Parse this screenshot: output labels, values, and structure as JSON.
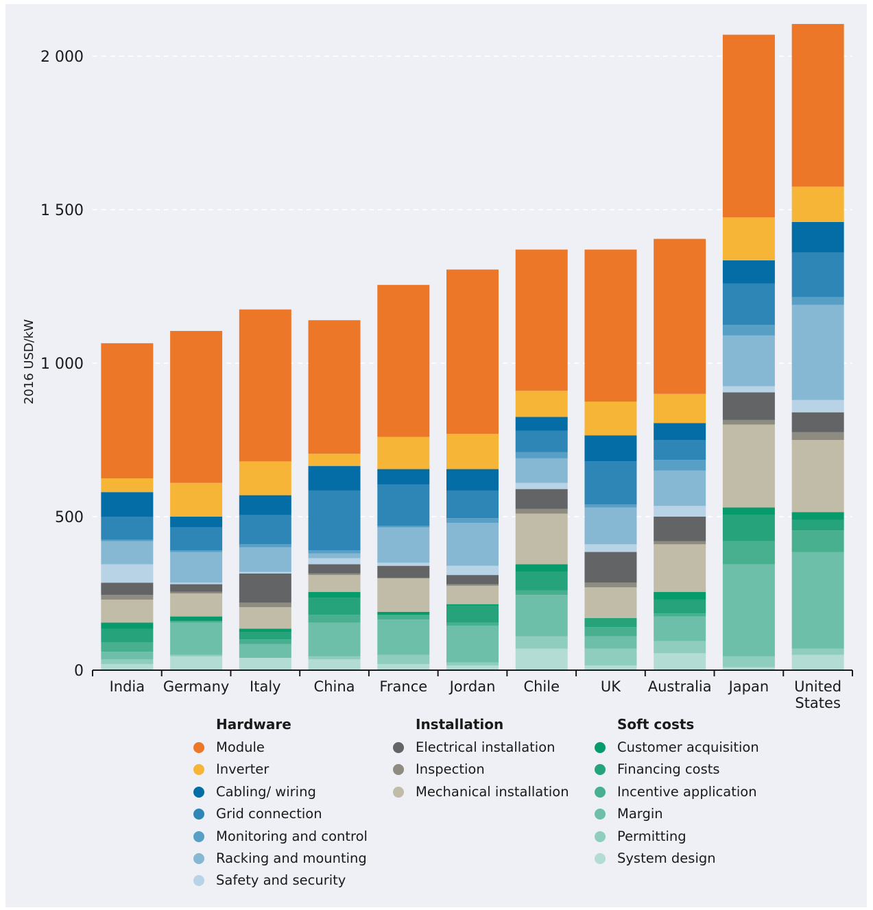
{
  "chart_data": {
    "type": "bar",
    "stacked": true,
    "ylabel": "2016 USD/kW",
    "xlabel": "",
    "ylim": [
      0,
      2100
    ],
    "yticks": [
      {
        "value": 0,
        "label": "0"
      },
      {
        "value": 500,
        "label": "500"
      },
      {
        "value": 1000,
        "label": "1 000"
      },
      {
        "value": 1500,
        "label": "1 500"
      },
      {
        "value": 2000,
        "label": "2 000"
      }
    ],
    "grid": true,
    "legend_position": "bottom",
    "categories": [
      "India",
      "Germany",
      "Italy",
      "China",
      "France",
      "Jordan",
      "Chile",
      "UK",
      "Australia",
      "Japan",
      "United States"
    ],
    "series": [
      {
        "name": "System design",
        "group": "Soft costs",
        "color": "#b3dcd5",
        "values": [
          20,
          45,
          40,
          35,
          20,
          15,
          70,
          15,
          55,
          10,
          50
        ]
      },
      {
        "name": "Permitting",
        "group": "Soft costs",
        "color": "#8fcdbf",
        "values": [
          15,
          5,
          0,
          10,
          30,
          10,
          40,
          55,
          40,
          35,
          20
        ]
      },
      {
        "name": "Margin",
        "group": "Soft costs",
        "color": "#6dbfa9",
        "values": [
          25,
          105,
          45,
          110,
          115,
          120,
          135,
          40,
          80,
          300,
          315
        ]
      },
      {
        "name": "Incentive application",
        "group": "Soft costs",
        "color": "#48b08f",
        "values": [
          30,
          5,
          15,
          25,
          15,
          10,
          15,
          30,
          10,
          75,
          70
        ]
      },
      {
        "name": "Financing costs",
        "group": "Soft costs",
        "color": "#27a37c",
        "values": [
          45,
          0,
          25,
          55,
          0,
          55,
          60,
          30,
          45,
          85,
          35
        ]
      },
      {
        "name": "Customer acquisition",
        "group": "Soft costs",
        "color": "#079a6b",
        "values": [
          20,
          15,
          10,
          20,
          10,
          5,
          25,
          0,
          25,
          25,
          25
        ]
      },
      {
        "name": "Mechanical installation",
        "group": "Installation",
        "color": "#c1bca8",
        "values": [
          75,
          75,
          70,
          55,
          110,
          60,
          165,
          100,
          155,
          270,
          235
        ]
      },
      {
        "name": "Inspection",
        "group": "Installation",
        "color": "#8e8b80",
        "values": [
          15,
          5,
          15,
          5,
          0,
          5,
          15,
          15,
          10,
          15,
          25
        ]
      },
      {
        "name": "Electrical installation",
        "group": "Installation",
        "color": "#636466",
        "values": [
          40,
          25,
          95,
          30,
          40,
          30,
          65,
          100,
          80,
          90,
          65
        ]
      },
      {
        "name": "Safety and security",
        "group": "Hardware",
        "color": "#b7d3e5",
        "values": [
          60,
          5,
          5,
          20,
          10,
          30,
          20,
          25,
          35,
          20,
          40
        ]
      },
      {
        "name": "Racking and mounting",
        "group": "Hardware",
        "color": "#87b8d3",
        "values": [
          75,
          100,
          80,
          15,
          115,
          140,
          80,
          120,
          115,
          165,
          310
        ]
      },
      {
        "name": "Monitoring and control",
        "group": "Hardware",
        "color": "#589fc5",
        "values": [
          5,
          5,
          10,
          10,
          5,
          15,
          20,
          10,
          35,
          35,
          25
        ]
      },
      {
        "name": "Grid connection",
        "group": "Hardware",
        "color": "#2e86b7",
        "values": [
          75,
          75,
          95,
          195,
          135,
          90,
          70,
          140,
          65,
          135,
          145
        ]
      },
      {
        "name": "Cabling/ wiring",
        "group": "Hardware",
        "color": "#046da5",
        "values": [
          80,
          35,
          65,
          80,
          50,
          70,
          45,
          85,
          55,
          75,
          100
        ]
      },
      {
        "name": "Inverter",
        "group": "Hardware",
        "color": "#f7b538",
        "values": [
          45,
          110,
          110,
          40,
          105,
          115,
          85,
          110,
          95,
          140,
          115
        ]
      },
      {
        "name": "Module",
        "group": "Hardware",
        "color": "#ed7728",
        "values": [
          440,
          495,
          495,
          435,
          495,
          535,
          460,
          495,
          505,
          595,
          530
        ]
      }
    ]
  },
  "legend": {
    "groups": [
      {
        "title": "Hardware",
        "items": [
          {
            "label": "Module",
            "color": "#ed7728"
          },
          {
            "label": "Inverter",
            "color": "#f7b538"
          },
          {
            "label": "Cabling/ wiring",
            "color": "#046da5"
          },
          {
            "label": "Grid connection",
            "color": "#2e86b7"
          },
          {
            "label": "Monitoring and control",
            "color": "#589fc5"
          },
          {
            "label": "Racking and mounting",
            "color": "#87b8d3"
          },
          {
            "label": "Safety and security",
            "color": "#b7d3e5"
          }
        ]
      },
      {
        "title": "Installation",
        "items": [
          {
            "label": "Electrical installation",
            "color": "#636466"
          },
          {
            "label": "Inspection",
            "color": "#8e8b80"
          },
          {
            "label": "Mechanical installation",
            "color": "#c1bca8"
          }
        ]
      },
      {
        "title": "Soft costs",
        "items": [
          {
            "label": "Customer acquisition",
            "color": "#079a6b"
          },
          {
            "label": "Financing costs",
            "color": "#27a37c"
          },
          {
            "label": "Incentive application",
            "color": "#48b08f"
          },
          {
            "label": "Margin",
            "color": "#6dbfa9"
          },
          {
            "label": "Permitting",
            "color": "#8fcdbf"
          },
          {
            "label": "System design",
            "color": "#b3dcd5"
          }
        ]
      }
    ]
  }
}
